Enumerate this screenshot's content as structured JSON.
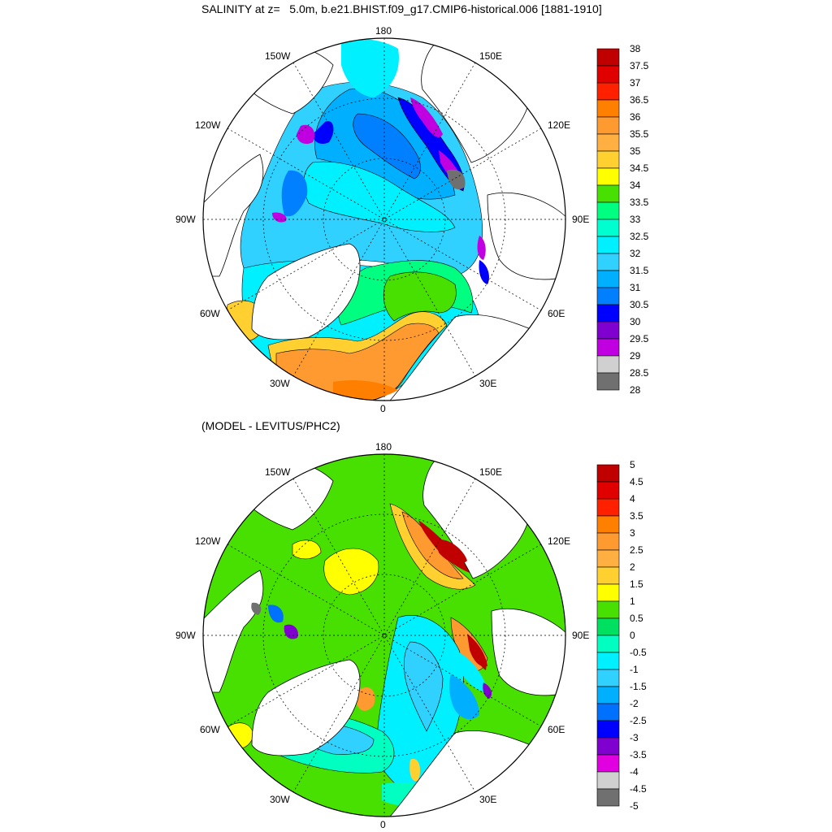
{
  "top_panel": {
    "title": "SALINITY at z=   5.0m, b.e21.BHIST.f09_g17.CMIP6-historical.006 [1881-1910]",
    "lon_labels": {
      "n180": "180",
      "w150": "150W",
      "e150": "150E",
      "w120": "120W",
      "e120": "120E",
      "w90": "90W",
      "e90": "90E",
      "w60": "60W",
      "e60": "60E",
      "w30": "30W",
      "e30": "30E",
      "s0": "0"
    },
    "colorbar": {
      "labels": [
        "38",
        "37.5",
        "37",
        "36.5",
        "36",
        "35.5",
        "35",
        "34.5",
        "34",
        "33.5",
        "33",
        "32.5",
        "32",
        "31.5",
        "31",
        "30.5",
        "30",
        "29.5",
        "29",
        "28.5",
        "28"
      ],
      "colors": [
        "#c00000",
        "#e00000",
        "#ff2000",
        "#ff8000",
        "#ff9a30",
        "#ffb040",
        "#ffd030",
        "#ffff00",
        "#48e000",
        "#00ff80",
        "#00ffd0",
        "#00f0ff",
        "#30d0ff",
        "#00b0ff",
        "#0080ff",
        "#0000ff",
        "#8000d0",
        "#c000e0",
        "#d0d0d0",
        "#707070"
      ]
    }
  },
  "bottom_panel": {
    "title": "(MODEL - LEVITUS/PHC2)",
    "lon_labels": {
      "n180": "180",
      "w150": "150W",
      "e150": "150E",
      "w120": "120W",
      "e120": "120E",
      "w90": "90W",
      "e90": "90E",
      "w60": "60W",
      "e60": "60E",
      "w30": "30W",
      "e30": "30E",
      "s0": "0"
    },
    "colorbar": {
      "labels": [
        "5",
        "4.5",
        "4",
        "3.5",
        "3",
        "2.5",
        "2",
        "1.5",
        "1",
        "0.5",
        "0",
        "-0.5",
        "-1",
        "-1.5",
        "-2",
        "-2.5",
        "-3",
        "-3.5",
        "-4",
        "-4.5",
        "-5"
      ],
      "colors": [
        "#c00000",
        "#e00000",
        "#ff2000",
        "#ff8000",
        "#ff9a30",
        "#ffb040",
        "#ffd030",
        "#ffff00",
        "#48e000",
        "#00e060",
        "#00ffc0",
        "#00f0ff",
        "#30d0ff",
        "#00b0ff",
        "#0070ff",
        "#0000ff",
        "#8000d0",
        "#e000e0",
        "#d0d0d0",
        "#707070"
      ]
    }
  }
}
